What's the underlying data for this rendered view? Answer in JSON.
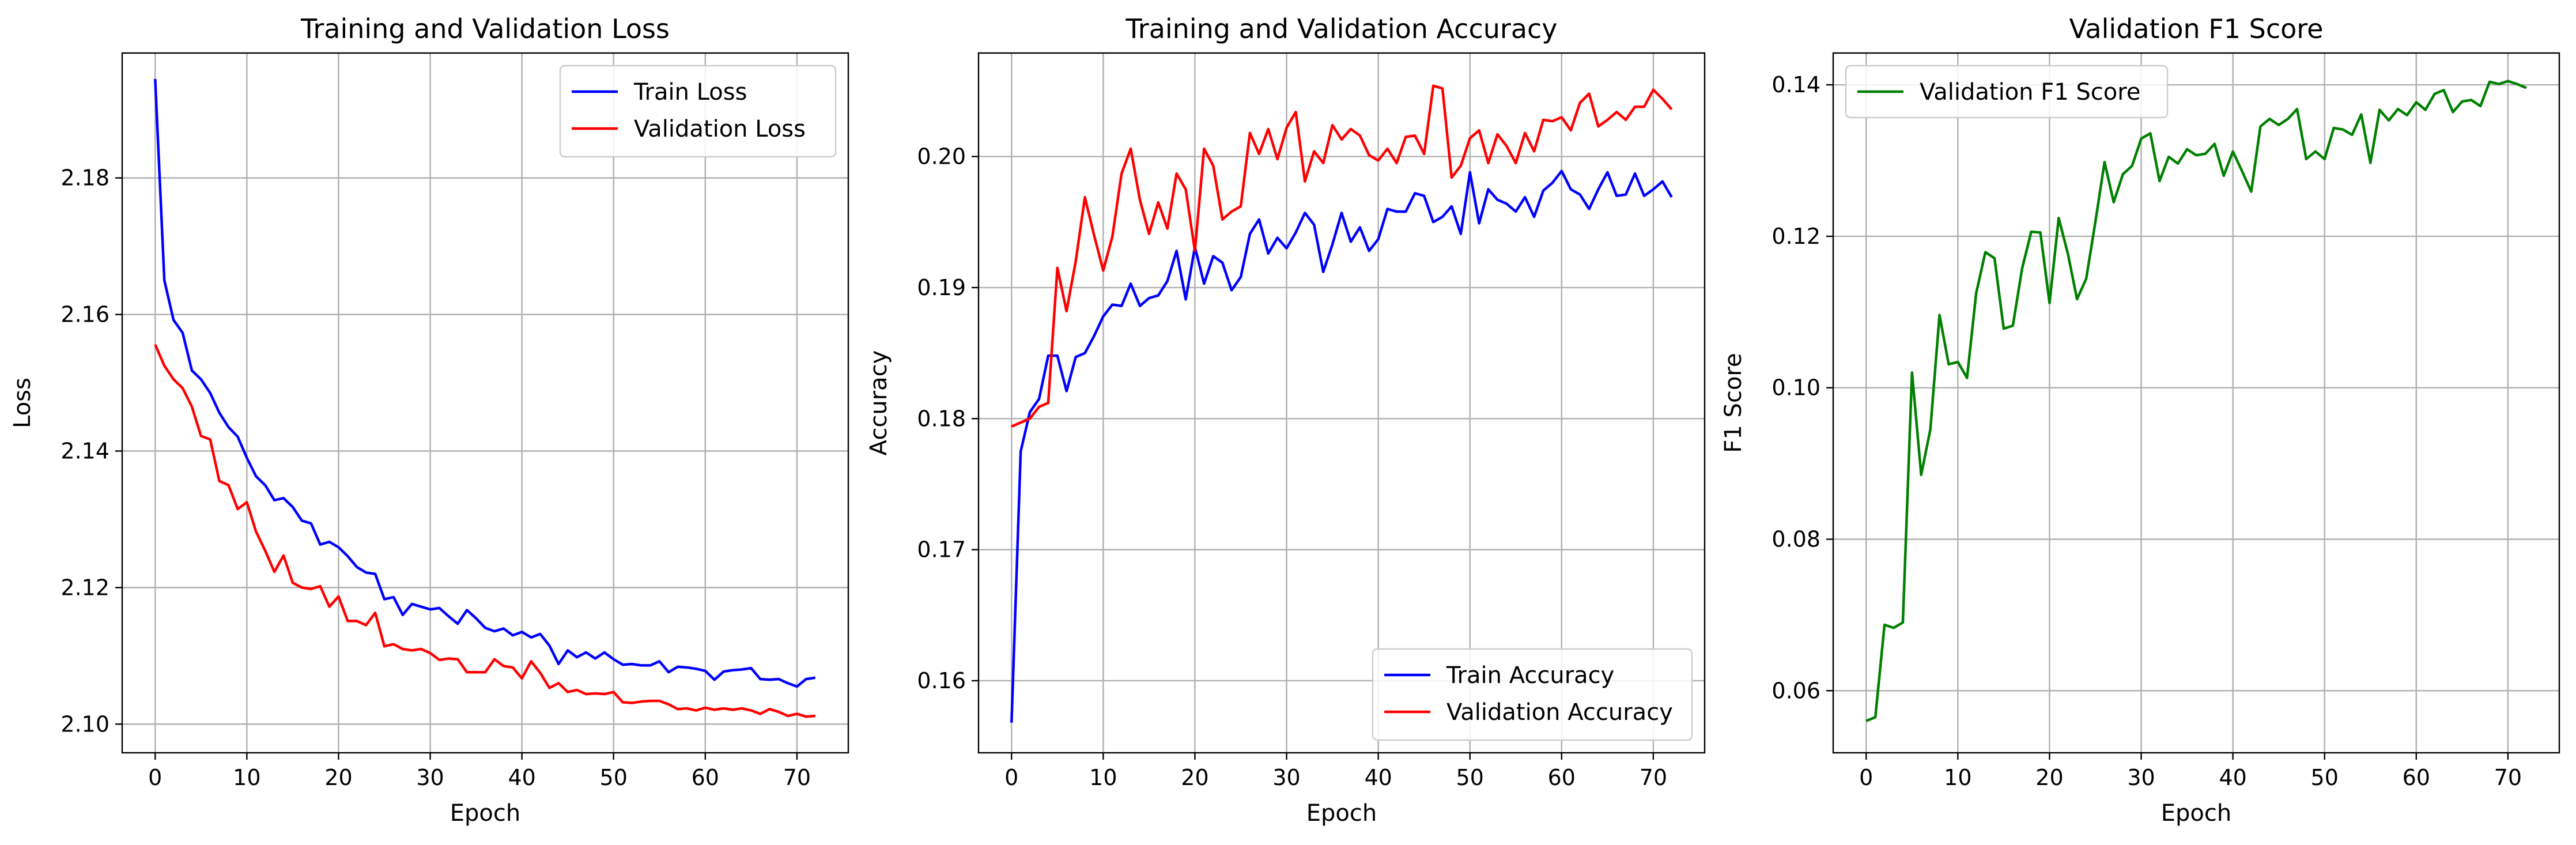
{
  "chart_data": [
    {
      "type": "line",
      "title": "Training and Validation Loss",
      "xlabel": "Epoch",
      "ylabel": "Loss",
      "xlim": [
        -3.6,
        75.6
      ],
      "ylim": [
        2.0958,
        2.1983
      ],
      "xticks": [
        0,
        10,
        20,
        30,
        40,
        50,
        60,
        70
      ],
      "yticks": [
        2.1,
        2.12,
        2.14,
        2.16,
        2.18
      ],
      "ytick_format": 2,
      "grid": true,
      "legend": "upper right",
      "series": [
        {
          "name": "Train Loss",
          "color": "#0000ff",
          "values": [
            2.1945,
            2.165,
            2.1592,
            2.1573,
            2.1518,
            2.1505,
            2.1485,
            2.1456,
            2.1435,
            2.1421,
            2.139,
            2.1363,
            2.135,
            2.1328,
            2.1331,
            2.1318,
            2.1298,
            2.1294,
            2.1263,
            2.1267,
            2.1259,
            2.1246,
            2.123,
            2.1222,
            2.122,
            2.1183,
            2.1186,
            2.116,
            2.1176,
            2.1172,
            2.1168,
            2.117,
            2.1158,
            2.1147,
            2.1167,
            2.1155,
            2.1141,
            2.1136,
            2.114,
            2.113,
            2.1135,
            2.1127,
            2.1132,
            2.1115,
            2.1088,
            2.1108,
            2.1098,
            2.1105,
            2.1096,
            2.1105,
            2.1095,
            2.1087,
            2.1088,
            2.1086,
            2.1086,
            2.1092,
            2.1076,
            2.1084,
            2.1083,
            2.1081,
            2.1078,
            2.1065,
            2.1077,
            2.1079,
            2.108,
            2.1082,
            2.1066,
            2.1065,
            2.1066,
            2.106,
            2.1055,
            2.1066,
            2.1068
          ]
        },
        {
          "name": "Validation Loss",
          "color": "#ff0000",
          "values": [
            2.1556,
            2.1525,
            2.1505,
            2.1492,
            2.1465,
            2.1422,
            2.1417,
            2.1356,
            2.135,
            2.1315,
            2.1325,
            2.1282,
            2.1254,
            2.1223,
            2.1247,
            2.1207,
            2.12,
            2.1198,
            2.1202,
            2.1172,
            2.1187,
            2.1151,
            2.1151,
            2.1145,
            2.1163,
            2.1114,
            2.1117,
            2.111,
            2.1108,
            2.111,
            2.1104,
            2.1094,
            2.1096,
            2.1095,
            2.1076,
            2.1076,
            2.1076,
            2.1095,
            2.1085,
            2.1083,
            2.1067,
            2.1092,
            2.1075,
            2.1053,
            2.106,
            2.1047,
            2.105,
            2.1044,
            2.1045,
            2.1044,
            2.1047,
            2.1032,
            2.1031,
            2.1033,
            2.1034,
            2.1034,
            2.1029,
            2.1022,
            2.1023,
            2.102,
            2.1024,
            2.1021,
            2.1023,
            2.1021,
            2.1023,
            2.102,
            2.1015,
            2.1022,
            2.1018,
            2.1012,
            2.1015,
            2.1011,
            2.1012
          ]
        }
      ]
    },
    {
      "type": "line",
      "title": "Training and Validation Accuracy",
      "xlabel": "Epoch",
      "ylabel": "Accuracy",
      "xlim": [
        -3.6,
        75.6
      ],
      "ylim": [
        0.1545,
        0.2079
      ],
      "xticks": [
        0,
        10,
        20,
        30,
        40,
        50,
        60,
        70
      ],
      "yticks": [
        0.16,
        0.17,
        0.18,
        0.19,
        0.2
      ],
      "ytick_format": 2,
      "grid": true,
      "legend": "lower right",
      "series": [
        {
          "name": "Train Accuracy",
          "color": "#0000ff",
          "values": [
            0.1568,
            0.1775,
            0.1805,
            0.1815,
            0.1848,
            0.1848,
            0.1821,
            0.1847,
            0.185,
            0.1863,
            0.1878,
            0.1887,
            0.1886,
            0.1903,
            0.1886,
            0.1892,
            0.1894,
            0.1905,
            0.1928,
            0.1891,
            0.1931,
            0.1903,
            0.1924,
            0.1919,
            0.1898,
            0.1908,
            0.1941,
            0.1952,
            0.1926,
            0.1938,
            0.193,
            0.1942,
            0.1957,
            0.1948,
            0.1912,
            0.1933,
            0.1957,
            0.1935,
            0.1946,
            0.1928,
            0.1937,
            0.196,
            0.1958,
            0.1958,
            0.1972,
            0.197,
            0.195,
            0.1954,
            0.1962,
            0.1941,
            0.1988,
            0.1949,
            0.1975,
            0.1967,
            0.1964,
            0.1958,
            0.1969,
            0.1954,
            0.1974,
            0.198,
            0.1989,
            0.1975,
            0.1971,
            0.196,
            0.1975,
            0.1988,
            0.197,
            0.1971,
            0.1987,
            0.197,
            0.1975,
            0.1981,
            0.1969
          ]
        },
        {
          "name": "Validation Accuracy",
          "color": "#ff0000",
          "values": [
            0.1794,
            0.1797,
            0.18,
            0.1809,
            0.1812,
            0.1915,
            0.1882,
            0.192,
            0.1969,
            0.194,
            0.1913,
            0.1939,
            0.1987,
            0.2006,
            0.1967,
            0.1941,
            0.1965,
            0.1945,
            0.1987,
            0.1975,
            0.1928,
            0.2006,
            0.1993,
            0.1952,
            0.1958,
            0.1962,
            0.2018,
            0.2002,
            0.2021,
            0.1998,
            0.2022,
            0.2034,
            0.1981,
            0.2004,
            0.1995,
            0.2024,
            0.2013,
            0.2021,
            0.2016,
            0.2001,
            0.1997,
            0.2006,
            0.1995,
            0.2015,
            0.2016,
            0.2002,
            0.2054,
            0.2052,
            0.1984,
            0.1993,
            0.2014,
            0.202,
            0.1995,
            0.2017,
            0.2008,
            0.1995,
            0.2018,
            0.2004,
            0.2028,
            0.2027,
            0.203,
            0.202,
            0.2041,
            0.2048,
            0.2023,
            0.2028,
            0.2034,
            0.2028,
            0.2038,
            0.2038,
            0.2051,
            0.2044,
            0.2036
          ]
        }
      ]
    },
    {
      "type": "line",
      "title": "Validation F1 Score",
      "xlabel": "Epoch",
      "ylabel": "F1 Score",
      "xlim": [
        -3.6,
        75.6
      ],
      "ylim": [
        0.0518,
        0.1442
      ],
      "xticks": [
        0,
        10,
        20,
        30,
        40,
        50,
        60,
        70
      ],
      "yticks": [
        0.06,
        0.08,
        0.1,
        0.12,
        0.14
      ],
      "ytick_format": 2,
      "grid": true,
      "legend": "upper left",
      "series": [
        {
          "name": "Validation F1 Score",
          "color": "#008000",
          "values": [
            0.056,
            0.0565,
            0.0687,
            0.0683,
            0.069,
            0.102,
            0.0885,
            0.0945,
            0.1096,
            0.1031,
            0.1034,
            0.1013,
            0.1125,
            0.1179,
            0.1171,
            0.1078,
            0.1082,
            0.1157,
            0.1206,
            0.1205,
            0.1112,
            0.1224,
            0.1177,
            0.1117,
            0.1144,
            0.1219,
            0.1298,
            0.1245,
            0.1282,
            0.1293,
            0.1329,
            0.1336,
            0.1273,
            0.1305,
            0.1296,
            0.1315,
            0.1307,
            0.1309,
            0.1322,
            0.128,
            0.1312,
            0.1286,
            0.1259,
            0.1345,
            0.1355,
            0.1347,
            0.1355,
            0.1368,
            0.1302,
            0.1312,
            0.1302,
            0.1343,
            0.1341,
            0.1334,
            0.1361,
            0.1297,
            0.1367,
            0.1353,
            0.1368,
            0.136,
            0.1377,
            0.1367,
            0.1388,
            0.1393,
            0.1364,
            0.1378,
            0.138,
            0.1372,
            0.1404,
            0.1401,
            0.1405,
            0.1401,
            0.1396
          ]
        }
      ]
    }
  ]
}
